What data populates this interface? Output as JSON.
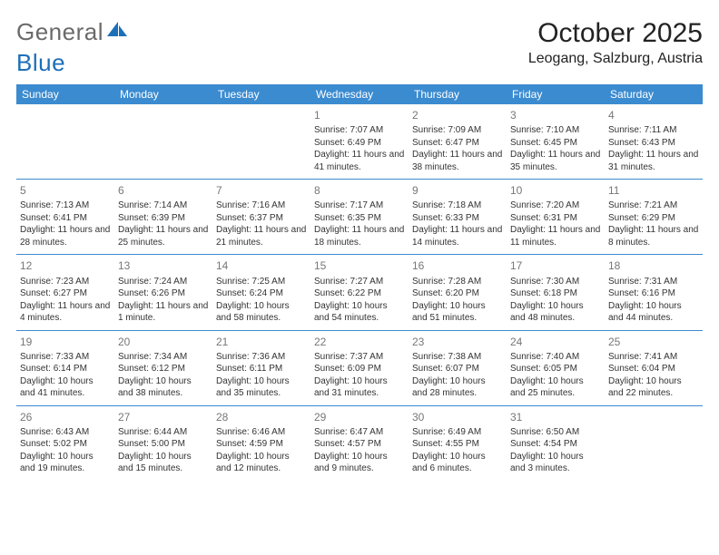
{
  "brand": {
    "part1": "General",
    "part2": "Blue"
  },
  "header": {
    "month": "October 2025",
    "location": "Leogang, Salzburg, Austria"
  },
  "colors": {
    "accent": "#3b8bd0",
    "background": "#ffffff",
    "text": "#222222",
    "day_num": "#777777"
  },
  "calendar": {
    "type": "table",
    "columns": [
      "Sunday",
      "Monday",
      "Tuesday",
      "Wednesday",
      "Thursday",
      "Friday",
      "Saturday"
    ],
    "weeks": [
      [
        null,
        null,
        null,
        {
          "d": "1",
          "sr": "7:07 AM",
          "ss": "6:49 PM",
          "dl": "11 hours and 41 minutes."
        },
        {
          "d": "2",
          "sr": "7:09 AM",
          "ss": "6:47 PM",
          "dl": "11 hours and 38 minutes."
        },
        {
          "d": "3",
          "sr": "7:10 AM",
          "ss": "6:45 PM",
          "dl": "11 hours and 35 minutes."
        },
        {
          "d": "4",
          "sr": "7:11 AM",
          "ss": "6:43 PM",
          "dl": "11 hours and 31 minutes."
        }
      ],
      [
        {
          "d": "5",
          "sr": "7:13 AM",
          "ss": "6:41 PM",
          "dl": "11 hours and 28 minutes."
        },
        {
          "d": "6",
          "sr": "7:14 AM",
          "ss": "6:39 PM",
          "dl": "11 hours and 25 minutes."
        },
        {
          "d": "7",
          "sr": "7:16 AM",
          "ss": "6:37 PM",
          "dl": "11 hours and 21 minutes."
        },
        {
          "d": "8",
          "sr": "7:17 AM",
          "ss": "6:35 PM",
          "dl": "11 hours and 18 minutes."
        },
        {
          "d": "9",
          "sr": "7:18 AM",
          "ss": "6:33 PM",
          "dl": "11 hours and 14 minutes."
        },
        {
          "d": "10",
          "sr": "7:20 AM",
          "ss": "6:31 PM",
          "dl": "11 hours and 11 minutes."
        },
        {
          "d": "11",
          "sr": "7:21 AM",
          "ss": "6:29 PM",
          "dl": "11 hours and 8 minutes."
        }
      ],
      [
        {
          "d": "12",
          "sr": "7:23 AM",
          "ss": "6:27 PM",
          "dl": "11 hours and 4 minutes."
        },
        {
          "d": "13",
          "sr": "7:24 AM",
          "ss": "6:26 PM",
          "dl": "11 hours and 1 minute."
        },
        {
          "d": "14",
          "sr": "7:25 AM",
          "ss": "6:24 PM",
          "dl": "10 hours and 58 minutes."
        },
        {
          "d": "15",
          "sr": "7:27 AM",
          "ss": "6:22 PM",
          "dl": "10 hours and 54 minutes."
        },
        {
          "d": "16",
          "sr": "7:28 AM",
          "ss": "6:20 PM",
          "dl": "10 hours and 51 minutes."
        },
        {
          "d": "17",
          "sr": "7:30 AM",
          "ss": "6:18 PM",
          "dl": "10 hours and 48 minutes."
        },
        {
          "d": "18",
          "sr": "7:31 AM",
          "ss": "6:16 PM",
          "dl": "10 hours and 44 minutes."
        }
      ],
      [
        {
          "d": "19",
          "sr": "7:33 AM",
          "ss": "6:14 PM",
          "dl": "10 hours and 41 minutes."
        },
        {
          "d": "20",
          "sr": "7:34 AM",
          "ss": "6:12 PM",
          "dl": "10 hours and 38 minutes."
        },
        {
          "d": "21",
          "sr": "7:36 AM",
          "ss": "6:11 PM",
          "dl": "10 hours and 35 minutes."
        },
        {
          "d": "22",
          "sr": "7:37 AM",
          "ss": "6:09 PM",
          "dl": "10 hours and 31 minutes."
        },
        {
          "d": "23",
          "sr": "7:38 AM",
          "ss": "6:07 PM",
          "dl": "10 hours and 28 minutes."
        },
        {
          "d": "24",
          "sr": "7:40 AM",
          "ss": "6:05 PM",
          "dl": "10 hours and 25 minutes."
        },
        {
          "d": "25",
          "sr": "7:41 AM",
          "ss": "6:04 PM",
          "dl": "10 hours and 22 minutes."
        }
      ],
      [
        {
          "d": "26",
          "sr": "6:43 AM",
          "ss": "5:02 PM",
          "dl": "10 hours and 19 minutes."
        },
        {
          "d": "27",
          "sr": "6:44 AM",
          "ss": "5:00 PM",
          "dl": "10 hours and 15 minutes."
        },
        {
          "d": "28",
          "sr": "6:46 AM",
          "ss": "4:59 PM",
          "dl": "10 hours and 12 minutes."
        },
        {
          "d": "29",
          "sr": "6:47 AM",
          "ss": "4:57 PM",
          "dl": "10 hours and 9 minutes."
        },
        {
          "d": "30",
          "sr": "6:49 AM",
          "ss": "4:55 PM",
          "dl": "10 hours and 6 minutes."
        },
        {
          "d": "31",
          "sr": "6:50 AM",
          "ss": "4:54 PM",
          "dl": "10 hours and 3 minutes."
        },
        null
      ]
    ],
    "labels": {
      "sunrise": "Sunrise:",
      "sunset": "Sunset:",
      "daylight": "Daylight:"
    },
    "style": {
      "header_bg": "#3b8bd0",
      "header_fg": "#ffffff",
      "header_fontsize": 12,
      "cell_fontsize": 10,
      "daynum_fontsize": 12,
      "row_border_color": "#3b8bd0"
    }
  }
}
